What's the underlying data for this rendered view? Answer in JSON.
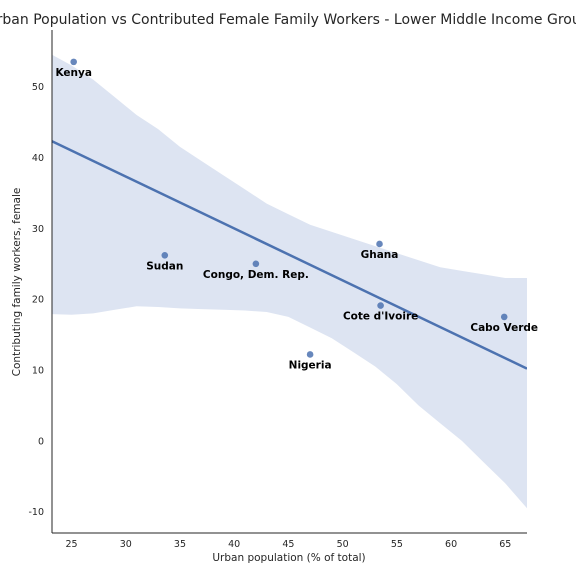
{
  "chart_data": {
    "type": "scatter",
    "title": "Urban Population vs Contributed Female Family Workers - Lower Middle Income Group",
    "xlabel": "Urban population (% of total)",
    "ylabel": "Contributing family workers, female",
    "xlim": [
      23.2,
      67
    ],
    "ylim": [
      -13,
      58
    ],
    "xticks": [
      "25",
      "30",
      "35",
      "40",
      "45",
      "50",
      "55",
      "60",
      "65"
    ],
    "yticks": [
      "-10",
      "0",
      "10",
      "20",
      "30",
      "40",
      "50"
    ],
    "grid": false,
    "point_color": "#4c72b0",
    "band_color": "#dde4f2",
    "points": [
      {
        "label": "Kenya",
        "x": 25.2,
        "y": 53.5
      },
      {
        "label": "Sudan",
        "x": 33.6,
        "y": 26.2
      },
      {
        "label": "Congo, Dem. Rep.",
        "x": 42.0,
        "y": 25.0
      },
      {
        "label": "Nigeria",
        "x": 47.0,
        "y": 12.2
      },
      {
        "label": "Ghana",
        "x": 53.4,
        "y": 27.8
      },
      {
        "label": "Cote d'Ivoire",
        "x": 53.5,
        "y": 19.1
      },
      {
        "label": "Cabo Verde",
        "x": 64.9,
        "y": 17.5
      }
    ],
    "regression_line": {
      "x": [
        23.2,
        67
      ],
      "y": [
        42.3,
        10.2
      ]
    },
    "confidence_band": {
      "x": [
        23.2,
        25,
        27,
        29,
        31,
        33,
        35,
        37,
        39,
        41,
        43,
        45,
        47,
        49,
        51,
        53,
        55,
        57,
        59,
        61,
        63,
        65,
        67
      ],
      "upper": [
        54.5,
        53,
        51,
        48.5,
        46,
        44,
        41.5,
        39.5,
        37.5,
        35.5,
        33.5,
        32,
        30.5,
        29.5,
        28.5,
        27.5,
        26.5,
        25.5,
        24.5,
        24,
        23.5,
        23,
        23
      ],
      "lower": [
        17.9,
        17.8,
        18,
        18.5,
        19,
        18.9,
        18.7,
        18.6,
        18.5,
        18.4,
        18.2,
        17.5,
        16,
        14.5,
        12.5,
        10.5,
        8,
        5,
        2.5,
        0,
        -3,
        -6,
        -9.5
      ]
    }
  }
}
